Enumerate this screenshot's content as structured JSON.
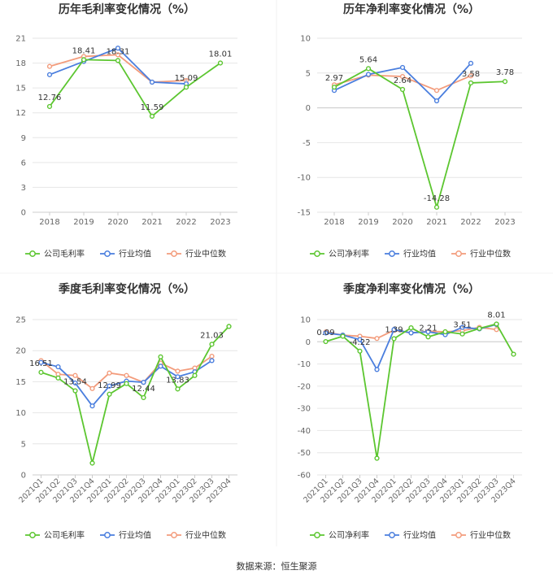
{
  "colors": {
    "company": "#5cc630",
    "industry_avg": "#4a7ede",
    "industry_median": "#f39c7c",
    "axis_text": "#666666",
    "grid": "#e6e6e6",
    "title": "#333333"
  },
  "footer": "数据来源：恒生聚源",
  "chart_data": [
    {
      "type": "line",
      "title": "历年毛利率变化情况（%）",
      "categories": [
        "2018",
        "2019",
        "2020",
        "2021",
        "2022",
        "2023"
      ],
      "ylim": [
        0,
        21
      ],
      "yticks": [
        0,
        3,
        6,
        9,
        12,
        15,
        18,
        21
      ],
      "series": [
        {
          "name": "公司毛利率",
          "values": [
            12.76,
            18.41,
            18.31,
            11.59,
            15.09,
            18.01
          ],
          "labels": [
            "12.76",
            "18.41",
            "18.31",
            "11.59",
            "15.09",
            "18.01"
          ]
        },
        {
          "name": "行业均值",
          "values": [
            16.6,
            18.2,
            19.8,
            15.7,
            15.5,
            null
          ]
        },
        {
          "name": "行业中位数",
          "values": [
            17.6,
            18.8,
            19.0,
            15.7,
            15.9,
            null
          ]
        }
      ],
      "legend": [
        "公司毛利率",
        "行业均值",
        "行业中位数"
      ],
      "legend_position": "bottom",
      "grid": "horizontal"
    },
    {
      "type": "line",
      "title": "历年净利率变化情况（%）",
      "categories": [
        "2018",
        "2019",
        "2020",
        "2021",
        "2022",
        "2023"
      ],
      "ylim": [
        -15,
        10
      ],
      "yticks": [
        -15,
        -10,
        -5,
        0,
        5,
        10
      ],
      "series": [
        {
          "name": "公司净利率",
          "values": [
            2.97,
            5.64,
            2.64,
            -14.28,
            3.58,
            3.78
          ],
          "labels": [
            "2.97",
            "5.64",
            "2.64",
            "-14.28",
            "3.58",
            "3.78"
          ]
        },
        {
          "name": "行业均值",
          "values": [
            2.5,
            4.8,
            5.8,
            1.0,
            6.4,
            null
          ]
        },
        {
          "name": "行业中位数",
          "values": [
            3.3,
            4.7,
            4.5,
            2.5,
            4.6,
            null
          ]
        }
      ],
      "legend": [
        "公司净利率",
        "行业均值",
        "行业中位数"
      ],
      "legend_position": "bottom",
      "grid": "horizontal"
    },
    {
      "type": "line",
      "title": "季度毛利率变化情况（%）",
      "categories": [
        "2021Q1",
        "2021Q2",
        "2021Q3",
        "2021Q4",
        "2022Q1",
        "2022Q2",
        "2022Q3",
        "2022Q4",
        "2023Q1",
        "2023Q2",
        "2023Q3",
        "2023Q4"
      ],
      "ylim": [
        0,
        25
      ],
      "yticks": [
        0,
        5,
        10,
        15,
        20,
        25
      ],
      "series": [
        {
          "name": "公司毛利率",
          "values": [
            16.51,
            15.6,
            13.54,
            1.9,
            12.99,
            14.7,
            12.44,
            19.0,
            13.83,
            16.0,
            21.03,
            23.9
          ],
          "labels": [
            "16.51",
            "",
            "13.54",
            "",
            "12.99",
            "",
            "12.44",
            "",
            "13.83",
            "",
            "21.03",
            ""
          ]
        },
        {
          "name": "行业均值",
          "values": [
            18.1,
            17.4,
            14.8,
            11.1,
            14.3,
            15.1,
            14.9,
            17.5,
            15.8,
            16.6,
            18.4,
            null
          ]
        },
        {
          "name": "行业中位数",
          "values": [
            18.4,
            16.2,
            16.0,
            13.9,
            16.4,
            16.0,
            14.9,
            18.0,
            16.7,
            17.2,
            19.1,
            null
          ]
        }
      ],
      "legend": [
        "公司毛利率",
        "行业均值",
        "行业中位数"
      ],
      "legend_position": "bottom",
      "grid": "horizontal"
    },
    {
      "type": "line",
      "title": "季度净利率变化情况（%）",
      "categories": [
        "2021Q1",
        "2021Q2",
        "2021Q3",
        "2021Q4",
        "2022Q1",
        "2022Q2",
        "2022Q3",
        "2022Q4",
        "2023Q1",
        "2023Q2",
        "2023Q3",
        "2023Q4"
      ],
      "ylim": [
        -60,
        10
      ],
      "yticks": [
        -60,
        -50,
        -40,
        -30,
        -20,
        -10,
        0,
        10
      ],
      "series": [
        {
          "name": "公司净利率",
          "values": [
            0.09,
            2.5,
            -4.22,
            -52.5,
            1.39,
            6.3,
            2.21,
            4.5,
            3.51,
            6.0,
            8.01,
            -5.6
          ],
          "labels": [
            "0.09",
            "",
            "-4.22",
            "",
            "1.39",
            "",
            "2.21",
            "",
            "3.51",
            "",
            "8.01",
            ""
          ]
        },
        {
          "name": "行业均值",
          "values": [
            4.0,
            3.0,
            1.0,
            -12.5,
            5.5,
            4.0,
            4.5,
            3.2,
            6.5,
            5.8,
            7.8,
            null
          ]
        },
        {
          "name": "行业中位数",
          "values": [
            4.4,
            3.0,
            2.5,
            1.5,
            5.2,
            4.0,
            4.7,
            4.5,
            5.0,
            6.5,
            5.5,
            null
          ]
        }
      ],
      "legend": [
        "公司净利率",
        "行业均值",
        "行业中位数"
      ],
      "legend_position": "bottom",
      "grid": "horizontal"
    }
  ]
}
